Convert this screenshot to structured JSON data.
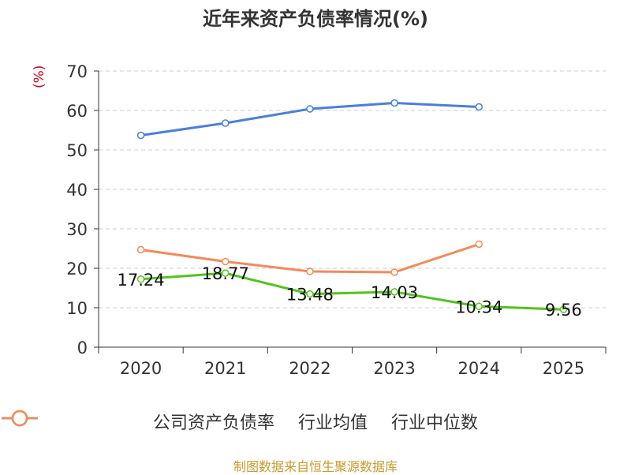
{
  "chart_data": {
    "type": "line",
    "title": "近年来资产负债率情况(%)",
    "ylabel": "(%)",
    "categories": [
      "2020",
      "2021",
      "2022",
      "2023",
      "2024",
      "2025"
    ],
    "y_ticks": [
      "0",
      "10",
      "20",
      "30",
      "40",
      "50",
      "60",
      "70"
    ],
    "ylim": [
      0,
      70
    ],
    "grid": true,
    "legend_position": "bottom",
    "series": [
      {
        "name": "公司资产负债率",
        "color": "#52c41a",
        "values": [
          17.24,
          18.77,
          13.48,
          14.03,
          10.34,
          9.56
        ],
        "labels": [
          "17.24",
          "18.77",
          "13.48",
          "14.03",
          "10.34",
          "9.56"
        ]
      },
      {
        "name": "行业均值",
        "color": "#4a7fdc",
        "values": [
          53.7,
          56.8,
          60.4,
          61.9,
          60.9,
          null
        ]
      },
      {
        "name": "行业中位数",
        "color": "#f5895a",
        "values": [
          24.7,
          21.7,
          19.2,
          19.0,
          26.1,
          null
        ]
      }
    ]
  },
  "source": "制图数据来自恒生聚源数据库"
}
